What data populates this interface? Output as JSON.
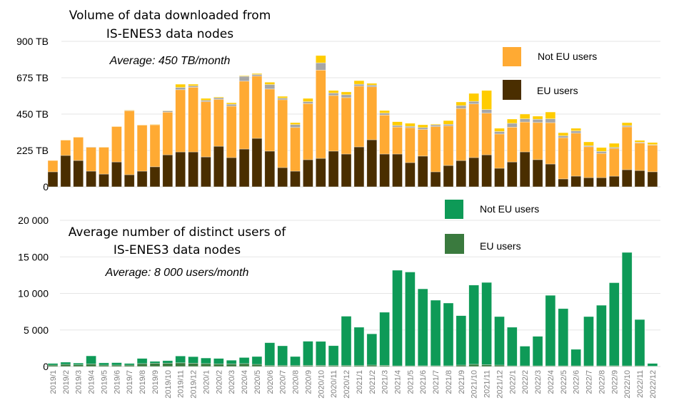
{
  "chart_data": [
    {
      "type": "bar",
      "stacked": true,
      "title": "Volume of data downloaded from IS-ENES3 data nodes",
      "title_lines": [
        "Volume of data downloaded from",
        "IS-ENES3 data nodes"
      ],
      "annotation": "Average: 450 TB/month",
      "xlabel": "",
      "ylabel": "",
      "unit": "TB",
      "ylim": [
        0,
        900
      ],
      "yticks": [
        0,
        225,
        450,
        675,
        900
      ],
      "ytick_labels": [
        "0",
        "225 TB",
        "450 TB",
        "675 TB",
        "900 TB"
      ],
      "grid": true,
      "legend_position": "top-right",
      "categories": [
        "2019/1",
        "2019/2",
        "2019/3",
        "2019/4",
        "2019/5",
        "2019/6",
        "2019/7",
        "2019/8",
        "2019/9",
        "2019/10",
        "2019/11",
        "2019/12",
        "2020/1",
        "2020/2",
        "2020/3",
        "2020/4",
        "2020/5",
        "2020/6",
        "2020/7",
        "2020/8",
        "2020/9",
        "2020/10",
        "2020/11",
        "2020/12",
        "2021/1",
        "2021/2",
        "2021/3",
        "2021/4",
        "2021/5",
        "2021/6",
        "2021/7",
        "2021/8",
        "2021/9",
        "2021/10",
        "2021/11",
        "2021/12",
        "2022/1",
        "2022/2",
        "2022/3",
        "2022/4",
        "2022/5",
        "2022/6",
        "2022/7",
        "2022/8",
        "2022/9",
        "2022/10",
        "2022/11",
        "2022/12"
      ],
      "series": [
        {
          "name": "EU users",
          "color": "#4a2e00",
          "in_legend": true,
          "values": [
            93,
            194,
            163,
            97,
            79,
            154,
            75,
            97,
            124,
            198,
            216,
            216,
            185,
            251,
            181,
            234,
            300,
            221,
            119,
            97,
            168,
            176,
            221,
            203,
            247,
            291,
            203,
            203,
            150,
            190,
            93,
            132,
            163,
            181,
            198,
            115,
            154,
            216,
            168,
            141,
            49,
            66,
            57,
            57,
            66,
            106,
            101,
            93
          ]
        },
        {
          "name": "Not EU users",
          "color": "#ffaa33",
          "in_legend": true,
          "values": [
            70,
            95,
            144,
            148,
            166,
            219,
            396,
            285,
            260,
            264,
            385,
            400,
            342,
            290,
            318,
            420,
            385,
            384,
            420,
            270,
            347,
            546,
            344,
            349,
            376,
            328,
            241,
            167,
            216,
            165,
            280,
            245,
            322,
            332,
            258,
            212,
            215,
            185,
            230,
            256,
            255,
            266,
            191,
            150,
            172,
            265,
            170,
            165
          ]
        },
        {
          "name": "Other (gray)",
          "color": "#a6a6a6",
          "in_legend": false,
          "values": [
            0,
            1,
            1,
            2,
            1,
            1,
            3,
            1,
            2,
            8,
            14,
            9,
            8,
            10,
            12,
            30,
            10,
            28,
            10,
            18,
            12,
            45,
            15,
            18,
            12,
            10,
            12,
            10,
            8,
            12,
            10,
            10,
            18,
            16,
            22,
            15,
            24,
            20,
            20,
            24,
            12,
            14,
            6,
            12,
            6,
            8,
            5,
            3
          ]
        },
        {
          "name": "Other (yellow)",
          "color": "#ffcc00",
          "in_legend": false,
          "values": [
            0,
            1,
            1,
            0,
            1,
            1,
            2,
            1,
            2,
            2,
            20,
            10,
            12,
            5,
            9,
            4,
            6,
            14,
            11,
            12,
            20,
            45,
            16,
            17,
            22,
            11,
            16,
            23,
            19,
            17,
            5,
            23,
            22,
            49,
            118,
            20,
            26,
            29,
            19,
            42,
            19,
            16,
            24,
            24,
            25,
            18,
            11,
            13
          ]
        }
      ],
      "legend": [
        {
          "label": "Not EU users",
          "color": "#ffaa33"
        },
        {
          "label": "EU users",
          "color": "#4a2e00"
        }
      ]
    },
    {
      "type": "bar",
      "stacked": true,
      "title": "Average number of distinct users of IS-ENES3 data nodes",
      "title_lines": [
        "Average number of distinct users of",
        "IS-ENES3 data nodes"
      ],
      "annotation": "Average: 8 000 users/month",
      "xlabel": "",
      "ylabel": "",
      "ylim": [
        0,
        20000
      ],
      "yticks": [
        0,
        5000,
        10000,
        15000,
        20000
      ],
      "ytick_labels": [
        "0",
        "5 000",
        "10 000",
        "15 000",
        "20 000"
      ],
      "grid": true,
      "legend_position": "top-right",
      "categories": [
        "2019/1",
        "2019/2",
        "2019/3",
        "2019/4",
        "2019/5",
        "2019/6",
        "2019/7",
        "2019/8",
        "2019/9",
        "2019/10",
        "2019/11",
        "2019/12",
        "2020/1",
        "2020/2",
        "2020/3",
        "2020/4",
        "2020/5",
        "2020/6",
        "2020/7",
        "2020/8",
        "2020/9",
        "2020/10",
        "2020/11",
        "2020/12",
        "2021/1",
        "2021/2",
        "2021/3",
        "2021/4",
        "2021/5",
        "2021/6",
        "2021/7",
        "2021/8",
        "2021/9",
        "2021/10",
        "2021/11",
        "2021/12",
        "2022/1",
        "2022/2",
        "2022/3",
        "2022/4",
        "2022/5",
        "2022/6",
        "2022/7",
        "2022/8",
        "2022/9",
        "2022/10",
        "2022/11",
        "2022/12"
      ],
      "series": [
        {
          "name": "EU users",
          "color": "#3a7a3e",
          "values": [
            200,
            300,
            250,
            350,
            200,
            200,
            200,
            400,
            450,
            450,
            500,
            450,
            400,
            350,
            350,
            400,
            300,
            150,
            150,
            150,
            150,
            150,
            150,
            150,
            150,
            200,
            150,
            100,
            100,
            100,
            100,
            100,
            200,
            300,
            250,
            200,
            100,
            100,
            100,
            100,
            100,
            100,
            100,
            100,
            100,
            100,
            100,
            50
          ]
        },
        {
          "name": "Not EU users",
          "color": "#0e9a57",
          "values": [
            220,
            300,
            220,
            1100,
            300,
            330,
            220,
            700,
            250,
            350,
            930,
            900,
            760,
            750,
            510,
            830,
            1070,
            3110,
            2680,
            1220,
            3300,
            3280,
            2700,
            6730,
            5230,
            4270,
            7270,
            13070,
            12830,
            10520,
            8970,
            8580,
            6760,
            10840,
            11250,
            6630,
            5280,
            2680,
            4030,
            9640,
            7820,
            2250,
            6730,
            8280,
            11360,
            15510,
            6330,
            370
          ]
        }
      ],
      "legend": [
        {
          "label": "Not EU users",
          "color": "#0e9a57"
        },
        {
          "label": "EU users",
          "color": "#3a7a3e"
        }
      ]
    }
  ]
}
